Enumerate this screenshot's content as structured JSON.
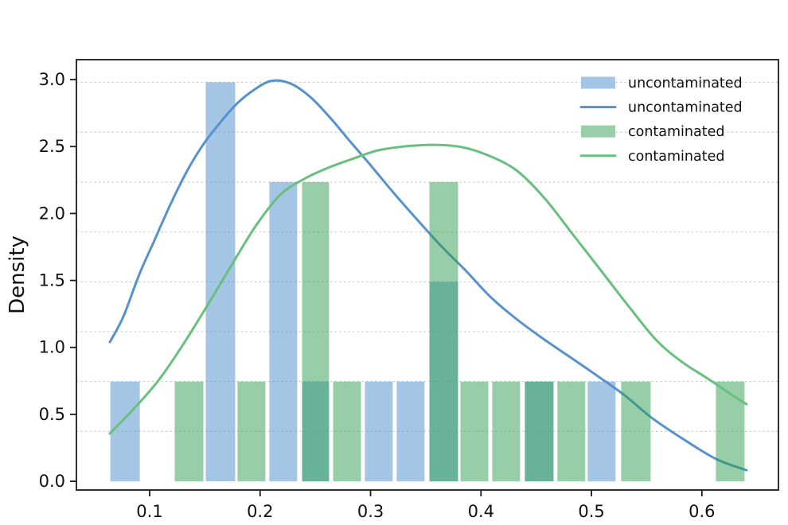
{
  "figure": {
    "background": "#ffffff",
    "text_color": "#111111",
    "spine_color": "#1a1a1a",
    "grid_color": "#c9c9c9"
  },
  "chart_data": {
    "type": "histogram+kde",
    "title": "",
    "xlabel": "",
    "ylabel": "Density",
    "xlim": [
      0.0337,
      0.6693
    ],
    "ylim": [
      -0.065,
      3.149
    ],
    "xticks": [
      0.1,
      0.2,
      0.3,
      0.4,
      0.5,
      0.6
    ],
    "yticks": [
      0.0,
      0.5,
      1.0,
      1.5,
      2.0,
      2.5,
      3.0
    ],
    "grid": {
      "axis": "y",
      "style": "dashed",
      "values": [
        0.3725,
        0.745,
        1.1175,
        1.49,
        1.8625,
        2.235,
        2.6075,
        2.98
      ]
    },
    "series": [
      {
        "name": "uncontaminated",
        "kind": "histogram",
        "base_color": "#4a8cc7",
        "opacity": 0.5,
        "bars": [
          [
            0.0633,
            0.0921,
            0.745
          ],
          [
            0.1497,
            0.1785,
            2.98
          ],
          [
            0.2073,
            0.2347,
            2.235
          ],
          [
            0.2369,
            0.2635,
            0.745
          ],
          [
            0.2938,
            0.3212,
            0.745
          ],
          [
            0.3226,
            0.35,
            0.745
          ],
          [
            0.3522,
            0.3803,
            1.49
          ],
          [
            0.4386,
            0.4667,
            0.745
          ],
          [
            0.4955,
            0.5229,
            0.745
          ]
        ]
      },
      {
        "name": "uncontaminated",
        "kind": "kde",
        "color": "#5792cd",
        "points": [
          [
            0.064,
            1.04
          ],
          [
            0.0762,
            1.23
          ],
          [
            0.0906,
            1.545
          ],
          [
            0.105,
            1.812
          ],
          [
            0.1195,
            2.08
          ],
          [
            0.1339,
            2.317
          ],
          [
            0.1483,
            2.513
          ],
          [
            0.1627,
            2.668
          ],
          [
            0.1771,
            2.805
          ],
          [
            0.1915,
            2.906
          ],
          [
            0.2095,
            2.989
          ],
          [
            0.2275,
            2.971
          ],
          [
            0.2455,
            2.87
          ],
          [
            0.2635,
            2.715
          ],
          [
            0.2816,
            2.537
          ],
          [
            0.2996,
            2.365
          ],
          [
            0.3212,
            2.151
          ],
          [
            0.3428,
            1.949
          ],
          [
            0.3644,
            1.753
          ],
          [
            0.386,
            1.575
          ],
          [
            0.4077,
            1.384
          ],
          [
            0.4293,
            1.23
          ],
          [
            0.4545,
            1.075
          ],
          [
            0.4797,
            0.933
          ],
          [
            0.5049,
            0.79
          ],
          [
            0.5301,
            0.642
          ],
          [
            0.5554,
            0.469
          ],
          [
            0.5842,
            0.309
          ],
          [
            0.613,
            0.166
          ],
          [
            0.6404,
            0.083
          ]
        ]
      },
      {
        "name": "contaminated",
        "kind": "histogram",
        "base_color": "#2f9e4f",
        "opacity": 0.5,
        "bars": [
          [
            0.1216,
            0.1497,
            0.745
          ],
          [
            0.1785,
            0.2059,
            0.745
          ],
          [
            0.2369,
            0.2635,
            2.235
          ],
          [
            0.265,
            0.2924,
            0.745
          ],
          [
            0.3522,
            0.3803,
            2.235
          ],
          [
            0.3803,
            0.4077,
            0.745
          ],
          [
            0.4091,
            0.4365,
            0.745
          ],
          [
            0.4386,
            0.4667,
            0.745
          ],
          [
            0.4681,
            0.4955,
            0.745
          ],
          [
            0.5258,
            0.5546,
            0.745
          ],
          [
            0.6116,
            0.6397,
            0.745
          ]
        ]
      },
      {
        "name": "contaminated",
        "kind": "kde",
        "color": "#68c07e",
        "points": [
          [
            0.064,
            0.357
          ],
          [
            0.0856,
            0.541
          ],
          [
            0.1086,
            0.76
          ],
          [
            0.1317,
            1.04
          ],
          [
            0.154,
            1.337
          ],
          [
            0.1756,
            1.634
          ],
          [
            0.1965,
            1.913
          ],
          [
            0.2182,
            2.139
          ],
          [
            0.2398,
            2.258
          ],
          [
            0.2614,
            2.341
          ],
          [
            0.283,
            2.406
          ],
          [
            0.3068,
            2.472
          ],
          [
            0.332,
            2.502
          ],
          [
            0.3572,
            2.513
          ],
          [
            0.3824,
            2.496
          ],
          [
            0.4077,
            2.43
          ],
          [
            0.4329,
            2.317
          ],
          [
            0.4581,
            2.109
          ],
          [
            0.4833,
            1.842
          ],
          [
            0.5085,
            1.575
          ],
          [
            0.5337,
            1.307
          ],
          [
            0.559,
            1.052
          ],
          [
            0.582,
            0.891
          ],
          [
            0.6044,
            0.772
          ],
          [
            0.6289,
            0.636
          ],
          [
            0.6404,
            0.576
          ]
        ]
      }
    ],
    "legend": {
      "position": "upper-right",
      "entries": [
        {
          "label": "uncontaminated",
          "swatch": "patch",
          "color": "#a4c5e3"
        },
        {
          "label": "uncontaminated",
          "swatch": "line",
          "color": "#5792cd"
        },
        {
          "label": "contaminated",
          "swatch": "patch",
          "color": "#97cea7"
        },
        {
          "label": "contaminated",
          "swatch": "line",
          "color": "#68c07e"
        }
      ]
    }
  }
}
